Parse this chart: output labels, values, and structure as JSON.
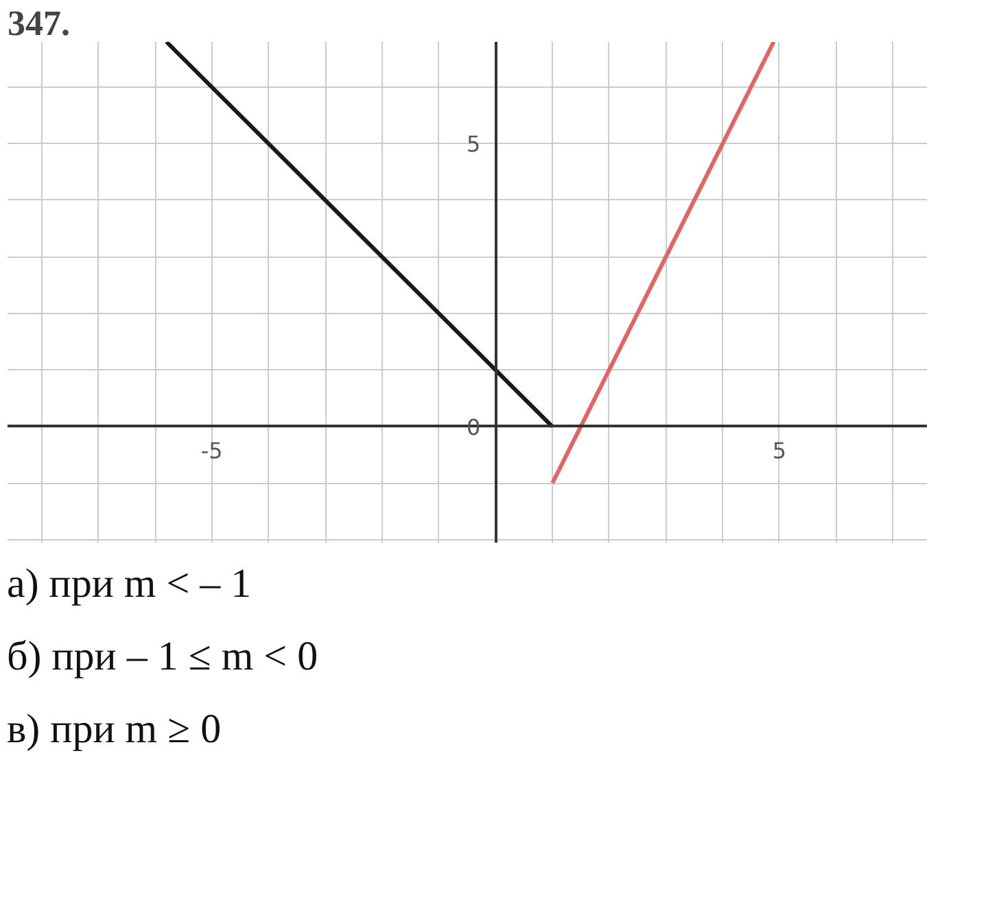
{
  "chart_data": {
    "type": "line",
    "title": "347.",
    "series": [
      {
        "x": [
          -5.8,
          1
        ],
        "values": [
          6.8,
          0
        ],
        "color": "#1a1a1a"
      },
      {
        "x": [
          1,
          4.9
        ],
        "values": [
          -1,
          6.8
        ],
        "color": "#e06666"
      }
    ],
    "xlim": [
      -8.6,
      7.6
    ],
    "ylim": [
      -2.05,
      6.8
    ],
    "xticks": [
      {
        "value": -8,
        "label": null
      },
      {
        "value": -7,
        "label": null
      },
      {
        "value": -6,
        "label": null
      },
      -5,
      {
        "value": -4,
        "label": null
      },
      {
        "value": -3,
        "label": null
      },
      {
        "value": -2,
        "label": null
      },
      {
        "value": -1,
        "label": null
      },
      {
        "value": 0,
        "label": null
      },
      {
        "value": 1,
        "label": null
      },
      {
        "value": 2,
        "label": null
      },
      {
        "value": 3,
        "label": null
      },
      {
        "value": 4,
        "label": null
      },
      5,
      {
        "value": 6,
        "label": null
      },
      {
        "value": 7,
        "label": null
      }
    ],
    "yticks": [
      {
        "value": -2,
        "label": null
      },
      {
        "value": -1,
        "label": null
      },
      0,
      {
        "value": 1,
        "label": null
      },
      {
        "value": 2,
        "label": null
      },
      {
        "value": 3,
        "label": null
      },
      {
        "value": 4,
        "label": null
      },
      5,
      {
        "value": 6,
        "label": null
      }
    ],
    "grid": true,
    "marker": "none",
    "line_style": "solid",
    "annotations": [
      "а) при m < – 1",
      "б) при – 1 ≤ m < 0",
      "в) при m ≥ 0"
    ]
  }
}
